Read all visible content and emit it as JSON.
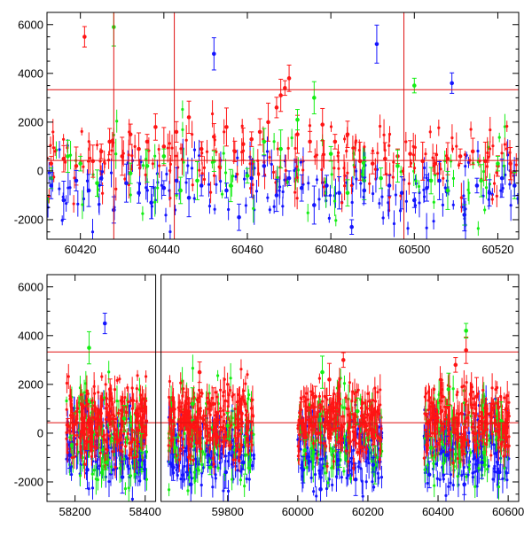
{
  "chart_data": [
    {
      "type": "scatter",
      "title": "",
      "xlabel": "",
      "ylabel": "",
      "xlim": [
        60412,
        60525
      ],
      "ylim": [
        -2800,
        6500
      ],
      "x_ticks": [
        60420,
        60440,
        60460,
        60480,
        60500,
        60520
      ],
      "y_ticks": [
        -2000,
        0,
        2000,
        4000,
        6000
      ],
      "grid": false,
      "error_bars": true,
      "hlines": [
        {
          "y": 3330,
          "color": "#e01010"
        },
        {
          "y": 430,
          "color": "#e01010"
        }
      ],
      "vlines": [
        {
          "x": 60428,
          "color": "#e01010"
        },
        {
          "x": 60442.5,
          "color": "#e01010"
        },
        {
          "x": 60497.5,
          "color": "#e01010"
        }
      ],
      "series": [
        {
          "color": "#ff1414",
          "x": [
            60413,
            60416,
            60419,
            60421,
            60423,
            60425,
            60427,
            60430,
            60432,
            60434,
            60436,
            60438,
            60440,
            60443,
            60446,
            60449,
            60452,
            60455,
            60457,
            60459,
            60461,
            60463,
            60465,
            60467,
            60468,
            60469,
            60470,
            60472,
            60475,
            60478,
            60481,
            60484,
            60487,
            60490,
            60493,
            60496,
            60499,
            60502,
            60505,
            60508,
            60511,
            60514,
            60517,
            60520,
            60523
          ],
          "y": [
            300,
            500,
            200,
            5500,
            400,
            800,
            1200,
            600,
            1500,
            900,
            1200,
            1800,
            1000,
            1600,
            2200,
            900,
            1400,
            1800,
            800,
            1100,
            1300,
            1600,
            2000,
            2600,
            3100,
            3400,
            3800,
            1500,
            1200,
            1900,
            1200,
            1500,
            400,
            300,
            500,
            600,
            700,
            400,
            300,
            500,
            600,
            800,
            400,
            200,
            300
          ]
        },
        {
          "color": "#14ee14",
          "x": [
            60413,
            60417,
            60420,
            60424,
            60428,
            60432,
            60436,
            60440,
            60444,
            60448,
            60452,
            60456,
            60460,
            60464,
            60468,
            60472,
            60476,
            60480,
            60484,
            60488,
            60492,
            60496,
            60500,
            60504,
            60508,
            60512,
            60516,
            60520,
            60524
          ],
          "y": [
            -300,
            600,
            300,
            -500,
            5900,
            -100,
            200,
            600,
            -800,
            -400,
            400,
            -600,
            -200,
            1200,
            900,
            2100,
            3000,
            700,
            -900,
            -400,
            -300,
            200,
            3500,
            -400,
            -800,
            -1800,
            -400,
            300,
            -600
          ]
        },
        {
          "color": "#1414ff",
          "x": [
            60413,
            60416,
            60419,
            60422,
            60425,
            60428,
            60431,
            60434,
            60437,
            60440,
            60443,
            60446,
            60449,
            60452,
            60455,
            60458,
            60461,
            60464,
            60467,
            60470,
            60473,
            60476,
            60479,
            60482,
            60485,
            60488,
            60491,
            60494,
            60497,
            60500,
            60503,
            60506,
            60509,
            60512,
            60515,
            60518,
            60521,
            60524
          ],
          "y": [
            -600,
            -1200,
            -400,
            -800,
            -300,
            -1600,
            -500,
            -900,
            -1300,
            -700,
            -400,
            -1100,
            -600,
            4800,
            -800,
            -1900,
            -300,
            200,
            -1000,
            -300,
            -700,
            -1400,
            -600,
            -900,
            -2300,
            -800,
            5200,
            -600,
            -900,
            -1200,
            -700,
            -400,
            3600,
            -1800,
            -600,
            -900,
            -300,
            -600
          ]
        }
      ]
    },
    {
      "type": "scatter",
      "title": "",
      "xlabel": "",
      "ylabel": "",
      "xlim": [
        58120,
        60630
      ],
      "axis_break": {
        "from": 58430,
        "to": 59610
      },
      "ylim": [
        -2800,
        6500
      ],
      "x_ticks": [
        58200,
        58400,
        59800,
        60000,
        60200,
        60400,
        60600
      ],
      "y_ticks": [
        -2000,
        0,
        2000,
        4000,
        6000
      ],
      "grid": false,
      "error_bars": true,
      "hlines": [
        {
          "y": 3330,
          "color": "#e01010"
        },
        {
          "y": 430,
          "color": "#e01010"
        }
      ],
      "segments": [
        {
          "x_range": [
            58175,
            58405
          ]
        },
        {
          "x_range": [
            59630,
            59875
          ]
        },
        {
          "x_range": [
            60000,
            60240
          ]
        },
        {
          "x_range": [
            60360,
            60605
          ]
        }
      ],
      "series": [
        {
          "color": "#ff1414",
          "x": [
            58180,
            58220,
            58260,
            58300,
            58340,
            58380,
            59640,
            59680,
            59720,
            59760,
            59800,
            59840,
            60010,
            60050,
            60090,
            60130,
            60170,
            60210,
            60370,
            60410,
            60450,
            60480,
            60510,
            60550,
            60590
          ],
          "y": [
            300,
            600,
            200,
            1800,
            400,
            700,
            500,
            900,
            2500,
            1200,
            600,
            800,
            500,
            1500,
            2200,
            3000,
            900,
            600,
            400,
            900,
            2800,
            3400,
            1500,
            800,
            300
          ]
        },
        {
          "color": "#14ee14",
          "x": [
            58190,
            58240,
            58290,
            58340,
            58390,
            59650,
            59700,
            59750,
            59800,
            59850,
            60020,
            60070,
            60120,
            60170,
            60220,
            60380,
            60430,
            60480,
            60530,
            60580
          ],
          "y": [
            -500,
            3500,
            -1200,
            600,
            -800,
            -600,
            1200,
            -1400,
            300,
            -900,
            -700,
            2500,
            -1100,
            900,
            -1300,
            -600,
            1800,
            4200,
            -800,
            500
          ]
        },
        {
          "color": "#1414ff",
          "x": [
            58185,
            58235,
            58285,
            58335,
            58385,
            59645,
            59695,
            59745,
            59795,
            59845,
            60015,
            60065,
            60115,
            60165,
            60215,
            60375,
            60425,
            60475,
            60525,
            60575
          ],
          "y": [
            -900,
            -1500,
            4500,
            -1800,
            -1100,
            -1400,
            -2100,
            -900,
            -1600,
            -1200,
            -1500,
            -2300,
            -1100,
            -1900,
            -1300,
            -1700,
            -900,
            -2100,
            -1200,
            -1600
          ]
        }
      ]
    }
  ]
}
